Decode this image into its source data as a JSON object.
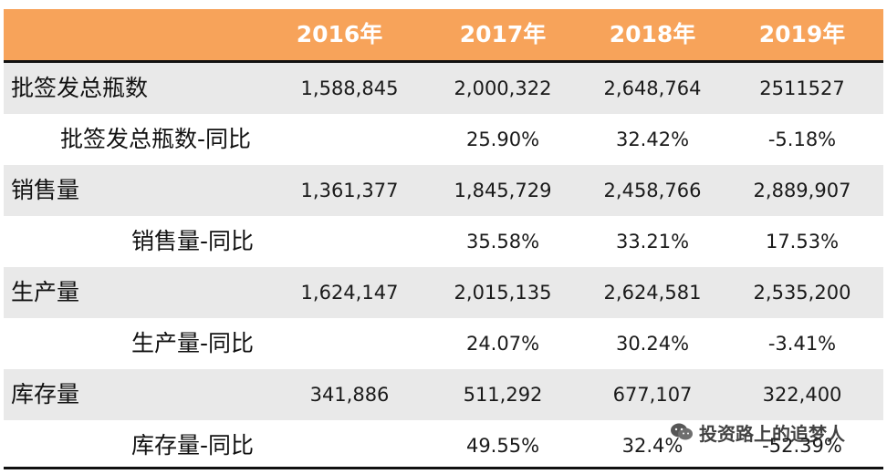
{
  "header": {
    "years": [
      "2016年",
      "2017年",
      "2018年",
      "2019年"
    ]
  },
  "rows": [
    {
      "label": "批签发总瓶数",
      "values": [
        "1,588,845",
        "2,000,322",
        "2,648,764",
        "2511527"
      ]
    },
    {
      "label": "批签发总瓶数-同比",
      "values": [
        "",
        "25.90%",
        "32.42%",
        "-5.18%"
      ]
    },
    {
      "label": "销售量",
      "values": [
        "1,361,377",
        "1,845,729",
        "2,458,766",
        "2,889,907"
      ]
    },
    {
      "label": "销售量-同比",
      "values": [
        "",
        "35.58%",
        "33.21%",
        "17.53%"
      ]
    },
    {
      "label": "生产量",
      "values": [
        "1,624,147",
        "2,015,135",
        "2,624,581",
        "2,535,200"
      ]
    },
    {
      "label": "生产量-同比",
      "values": [
        "",
        "24.07%",
        "30.24%",
        "-3.41%"
      ]
    },
    {
      "label": "库存量",
      "values": [
        "341,886",
        "511,292",
        "677,107",
        "322,400"
      ]
    },
    {
      "label": "库存量-同比",
      "values": [
        "",
        "49.55%",
        "32.4%",
        "-52.39%"
      ]
    }
  ],
  "watermark": {
    "icon": "wechat-icon",
    "text": "投资路上的追梦人"
  },
  "colors": {
    "header_bg": "#f7a35a",
    "row_shade": "#e9e9e9"
  }
}
